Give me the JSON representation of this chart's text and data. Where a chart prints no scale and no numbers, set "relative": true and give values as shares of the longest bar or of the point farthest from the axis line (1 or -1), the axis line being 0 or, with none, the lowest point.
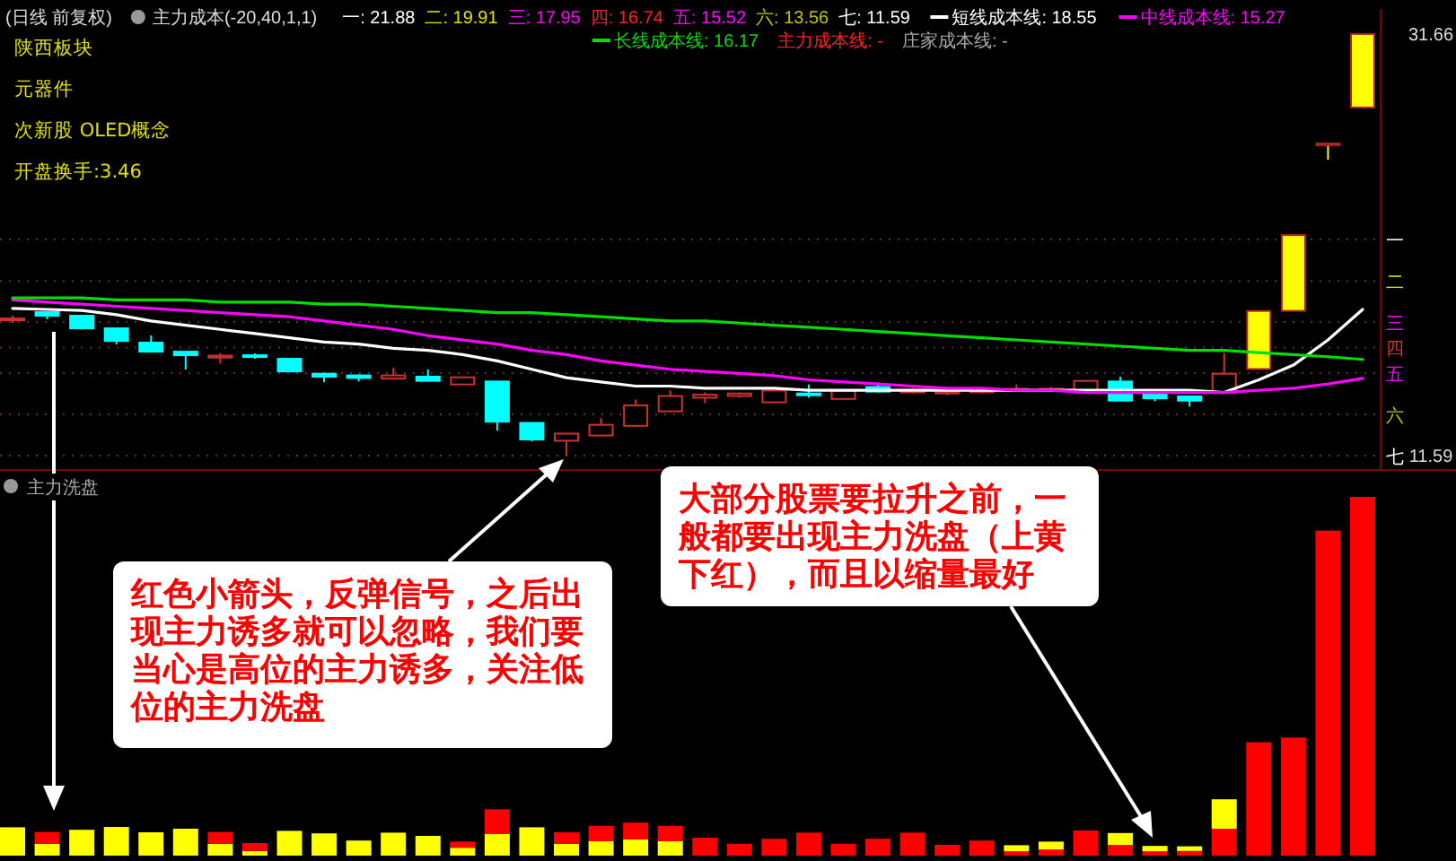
{
  "chart_data": [
    {
      "type": "candlestick",
      "title": "(日线 前复权)",
      "subtitle": "主力成本(-20,40,1,1)",
      "legend": "top",
      "categories": [
        null,
        null,
        null,
        null,
        null,
        null,
        null,
        null,
        null,
        null,
        null,
        null,
        null,
        null,
        null,
        null,
        null,
        null,
        null,
        null,
        null,
        null,
        null,
        null,
        null,
        null,
        null,
        null,
        null,
        null,
        null,
        null,
        null,
        null,
        null,
        null,
        null,
        null,
        null,
        null
      ],
      "ohlc": [
        [
          18.04,
          18.25,
          17.91,
          18.12
        ],
        [
          18.42,
          18.42,
          18.08,
          18.25
        ],
        [
          18.25,
          18.25,
          17.6,
          17.65
        ],
        [
          17.65,
          17.65,
          16.88,
          17.05
        ],
        [
          16.97,
          17.31,
          16.54,
          16.54
        ],
        [
          16.54,
          16.54,
          15.69,
          16.37
        ],
        [
          16.26,
          16.46,
          15.97,
          16.35
        ],
        [
          16.37,
          16.46,
          16.2,
          16.29
        ],
        [
          16.2,
          16.2,
          15.6,
          15.6
        ],
        [
          15.49,
          15.54,
          15.09,
          15.35
        ],
        [
          15.41,
          15.46,
          15.12,
          15.29
        ],
        [
          15.26,
          15.77,
          15.26,
          15.41
        ],
        [
          15.35,
          15.69,
          15.15,
          15.15
        ],
        [
          14.98,
          15.32,
          14.98,
          15.32
        ],
        [
          15.12,
          15.12,
          12.78,
          13.21
        ],
        [
          13.15,
          13.15,
          12.27,
          12.36
        ],
        [
          12.3,
          12.64,
          11.59,
          12.64
        ],
        [
          12.55,
          13.38,
          12.55,
          13.06
        ],
        [
          13.01,
          14.26,
          13.01,
          13.98
        ],
        [
          13.7,
          14.69,
          13.7,
          14.43
        ],
        [
          14.35,
          14.6,
          14.09,
          14.49
        ],
        [
          14.43,
          14.6,
          14.35,
          14.55
        ],
        [
          14.13,
          14.69,
          14.13,
          14.69
        ],
        [
          14.55,
          14.98,
          14.35,
          14.49
        ],
        [
          14.29,
          14.69,
          14.29,
          14.69
        ],
        [
          14.86,
          14.98,
          14.6,
          14.64
        ],
        [
          14.6,
          14.81,
          14.55,
          14.72
        ],
        [
          14.6,
          14.72,
          14.47,
          14.64
        ],
        [
          14.64,
          14.77,
          14.55,
          14.69
        ],
        [
          14.69,
          14.98,
          14.64,
          14.77
        ],
        [
          14.72,
          14.86,
          14.64,
          14.77
        ],
        [
          14.6,
          15.15,
          14.6,
          15.15
        ],
        [
          15.12,
          15.35,
          14.21,
          14.21
        ],
        [
          14.55,
          14.6,
          14.18,
          14.32
        ],
        [
          14.41,
          14.43,
          13.92,
          14.21
        ],
        [
          14.58,
          16.48,
          14.58,
          15.49
        ],
        [
          15.71,
          18.48,
          15.71,
          18.48
        ],
        [
          18.48,
          22.09,
          18.48,
          22.09
        ],
        [
          26.45,
          26.45,
          25.68,
          26.45
        ],
        [
          28.16,
          31.66,
          28.16,
          31.66
        ]
      ],
      "colors": [
        "#d03030",
        "#00ffff",
        "#00ffff",
        "#00ffff",
        "#00ffff",
        "#00ffff",
        "#d03030",
        "#00ffff",
        "#00ffff",
        "#00ffff",
        "#00ffff",
        "#d03030",
        "#00ffff",
        "#d03030",
        "#00ffff",
        "#00ffff",
        "#d03030",
        "#d03030",
        "#d03030",
        "#d03030",
        "#d03030",
        "#d03030",
        "#d03030",
        "#00ffff",
        "#d03030",
        "#00ffff",
        "#d03030",
        "#d03030",
        "#d03030",
        "#d03030",
        "#d03030",
        "#d03030",
        "#00ffff",
        "#00ffff",
        "#00ffff",
        "#d03030",
        "#ffff00",
        "#ffff00",
        "#ffff00",
        "#ffff00"
      ],
      "series": [
        {
          "type": "line",
          "name": "短线成本线: 18.55",
          "color": "#ffffff",
          "values": [
            18.6,
            18.55,
            18.5,
            18.3,
            18.0,
            17.8,
            17.6,
            17.4,
            17.2,
            17.0,
            16.9,
            16.7,
            16.6,
            16.4,
            16.1,
            15.7,
            15.3,
            15.1,
            14.9,
            14.9,
            14.8,
            14.8,
            14.8,
            14.7,
            14.7,
            14.7,
            14.7,
            14.7,
            14.7,
            14.7,
            14.7,
            14.7,
            14.7,
            14.7,
            14.7,
            14.6,
            15.2,
            15.9,
            17.1,
            18.55
          ]
        },
        {
          "type": "line",
          "name": "中线成本线: 15.27",
          "color": "#ff00ff",
          "values": [
            19.0,
            18.9,
            18.8,
            18.7,
            18.6,
            18.5,
            18.4,
            18.3,
            18.2,
            18.0,
            17.8,
            17.6,
            17.3,
            17.1,
            16.9,
            16.6,
            16.4,
            16.1,
            15.9,
            15.7,
            15.6,
            15.5,
            15.4,
            15.2,
            15.1,
            15.0,
            14.9,
            14.8,
            14.8,
            14.7,
            14.7,
            14.6,
            14.6,
            14.6,
            14.6,
            14.6,
            14.7,
            14.8,
            15.0,
            15.27
          ]
        },
        {
          "type": "line",
          "name": "长线成本线: 16.17",
          "color": "#00dd00",
          "values": [
            19.1,
            19.1,
            19.1,
            19.0,
            19.0,
            19.0,
            18.9,
            18.9,
            18.9,
            18.8,
            18.8,
            18.7,
            18.6,
            18.5,
            18.4,
            18.4,
            18.3,
            18.2,
            18.1,
            18.0,
            18.0,
            17.9,
            17.8,
            17.7,
            17.6,
            17.5,
            17.4,
            17.3,
            17.2,
            17.1,
            17.0,
            16.9,
            16.8,
            16.7,
            16.6,
            16.6,
            16.5,
            16.4,
            16.3,
            16.17
          ]
        }
      ],
      "ylim": [
        10.91,
        32.85
      ],
      "yticks": [
        11.59,
        31.66
      ],
      "ref_lines": [
        {
          "axis": "y",
          "value": 21.88,
          "label": "一"
        },
        {
          "axis": "y",
          "value": 19.91,
          "label": "二"
        },
        {
          "axis": "y",
          "value": 17.95,
          "label": "三"
        },
        {
          "axis": "y",
          "value": 16.74,
          "label": "四"
        },
        {
          "axis": "y",
          "value": 15.52,
          "label": "五"
        },
        {
          "axis": "y",
          "value": 13.56,
          "label": "六"
        },
        {
          "axis": "y",
          "value": 11.59,
          "label": "七"
        }
      ],
      "annotations": [
        "一: 21.88",
        "二: 19.91",
        "三: 17.95",
        "四: 16.74",
        "五: 15.52",
        "六: 13.56",
        "七: 11.59",
        "主力成本线: -",
        "庄家成本线: -",
        "陕西板块",
        "元器件",
        "次新股 OLED概念",
        "开盘换手:3.46"
      ]
    },
    {
      "type": "bar",
      "title": "主力洗盘",
      "stacked": true,
      "relative": true,
      "categories": [
        null,
        null,
        null,
        null,
        null,
        null,
        null,
        null,
        null,
        null,
        null,
        null,
        null,
        null,
        null,
        null,
        null,
        null,
        null,
        null,
        null,
        null,
        null,
        null,
        null,
        null,
        null,
        null,
        null,
        null,
        null,
        null,
        null,
        null,
        null,
        null,
        null,
        null,
        null,
        null
      ],
      "series": [
        {
          "color": "#ff0000",
          "values": [
            null,
            null,
            null,
            null,
            null,
            null,
            null,
            null,
            null,
            null,
            null,
            null,
            null,
            null,
            null,
            null,
            null,
            null,
            null,
            null,
            0.05,
            0.033,
            0.047,
            0.064,
            0.033,
            0.047,
            0.064,
            0.03,
            0.042,
            0.012,
            0.017,
            0.07,
            0.03,
            0.012,
            0.013,
            0.075,
            0.316,
            0.329,
            0.906,
            1
          ]
        },
        {
          "color": "#ffff00",
          "values": [
            0.079,
            0.033,
            0.072,
            0.08,
            0.065,
            0.075,
            0.033,
            0.013,
            0.069,
            0.062,
            0.042,
            0.064,
            0.055,
            0.022,
            0.06,
            0.079,
            0.033,
            0.04,
            0.045,
            0.04,
            null,
            null,
            null,
            null,
            null,
            null,
            null,
            null,
            null,
            0.017,
            0.022,
            null,
            0.033,
            0.015,
            0.013,
            0.082,
            null,
            null,
            null,
            null
          ]
        },
        {
          "color": "#ff0000",
          "values": [
            null,
            0.033,
            null,
            null,
            null,
            null,
            0.033,
            0.022,
            null,
            null,
            null,
            null,
            null,
            0.017,
            0.069,
            null,
            0.032,
            0.043,
            0.047,
            0.043,
            null,
            null,
            null,
            null,
            null,
            null,
            null,
            null,
            null,
            null,
            null,
            null,
            null,
            null,
            null,
            null,
            null,
            null,
            null,
            null
          ]
        }
      ],
      "annotations": [
        "红色小箭头，反弹信号，之后出现主力诱多就可以忽略，我们要当心是高位的主力诱多，关注低位的主力洗盘",
        "大部分股票要拉升之前，一般都要出现主力洗盘（上黄下红），而且以缩量最好"
      ]
    }
  ]
}
